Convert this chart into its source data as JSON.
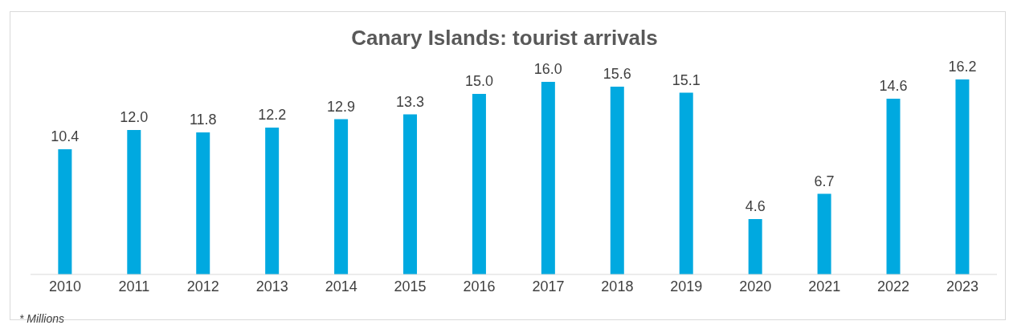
{
  "chart_data": {
    "type": "bar",
    "title": "Canary Islands: tourist arrivals",
    "categories": [
      "2010",
      "2011",
      "2012",
      "2013",
      "2014",
      "2015",
      "2016",
      "2017",
      "2018",
      "2019",
      "2020",
      "2021",
      "2022",
      "2023"
    ],
    "values": [
      10.4,
      12.0,
      11.8,
      12.2,
      12.9,
      13.3,
      15.0,
      16.0,
      15.6,
      15.1,
      4.6,
      6.7,
      14.6,
      16.2
    ],
    "value_labels": [
      "10.4",
      "12.0",
      "11.8",
      "12.2",
      "12.9",
      "13.3",
      "15.0",
      "16.0",
      "15.6",
      "15.1",
      "4.6",
      "6.7",
      "14.6",
      "16.2"
    ],
    "color": "#00a9e0",
    "annotations": [
      "* Millions"
    ],
    "grid": false,
    "legend": false
  }
}
